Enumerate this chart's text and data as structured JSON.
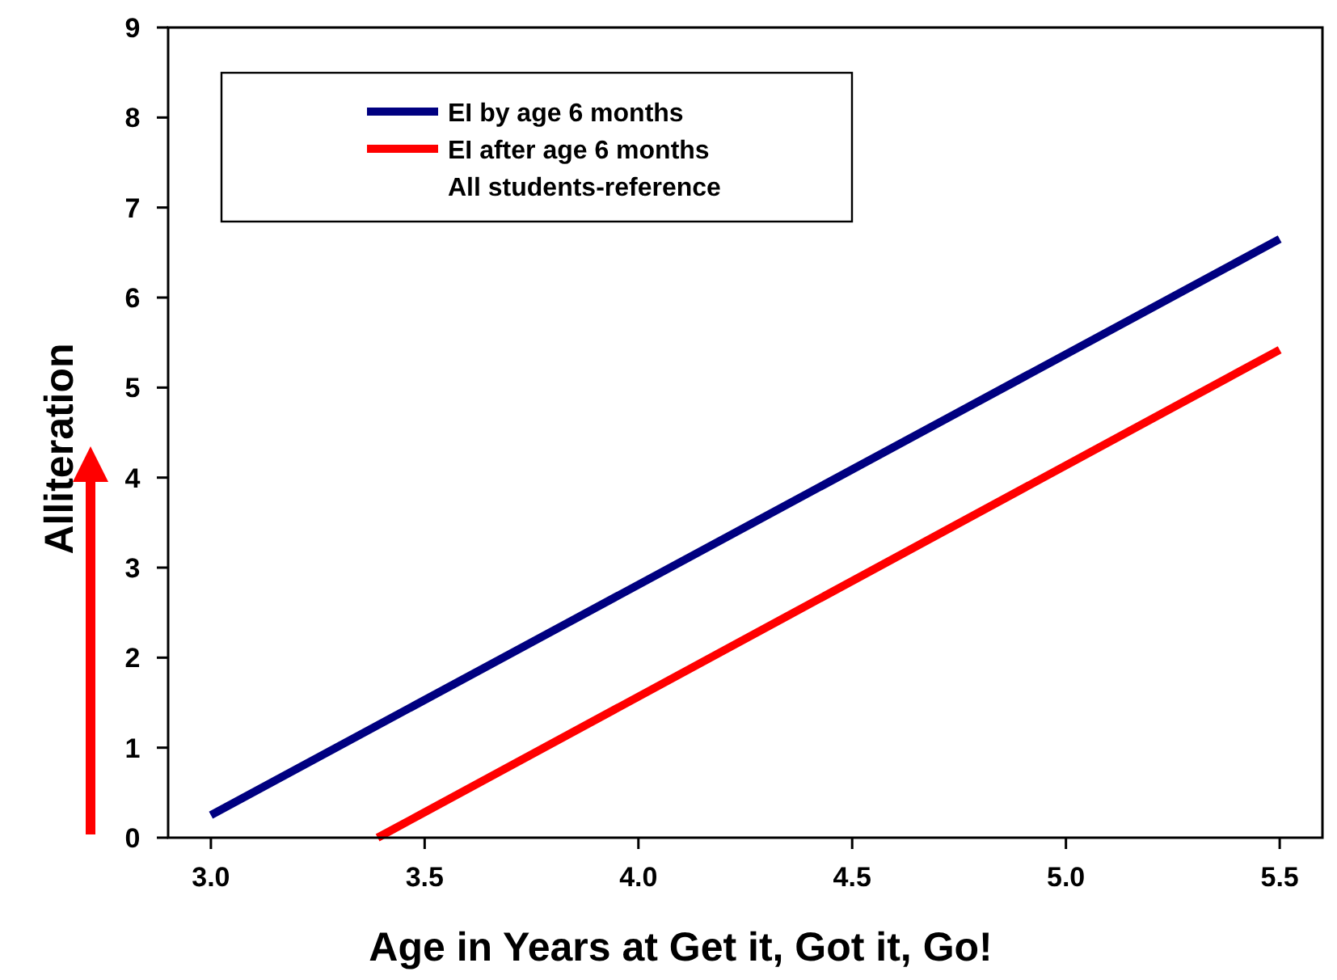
{
  "chart_data": {
    "type": "line",
    "xlabel": "Age in Years at Get it, Got it, Go!",
    "ylabel": "Alliteration",
    "xlim": [
      2.9,
      5.6
    ],
    "xticks": [
      {
        "value": 3,
        "label": "3.0"
      },
      {
        "value": 3.5,
        "label": "3.5"
      },
      {
        "value": 4,
        "label": "4.0"
      },
      {
        "value": 4.5,
        "label": "4.5"
      },
      {
        "value": 5,
        "label": "5.0"
      },
      {
        "value": 5.5,
        "label": "5.5"
      }
    ],
    "ylim": [
      0,
      9
    ],
    "yticks": [
      0,
      1,
      2,
      3,
      4,
      5,
      6,
      7,
      8,
      9
    ],
    "grid": false,
    "legend": "top left",
    "marker": "none",
    "line_style": "solid",
    "series": [
      {
        "name": "EI by age 6 months",
        "color": "#000080",
        "x": [
          3.0,
          5.5
        ],
        "values": [
          0.25,
          6.65
        ]
      },
      {
        "name": "EI after age 6 months",
        "color": "#ff0000",
        "x": [
          3.39,
          5.5
        ],
        "values": [
          0,
          5.42
        ]
      }
    ],
    "annotations": [
      "All students-reference"
    ]
  }
}
